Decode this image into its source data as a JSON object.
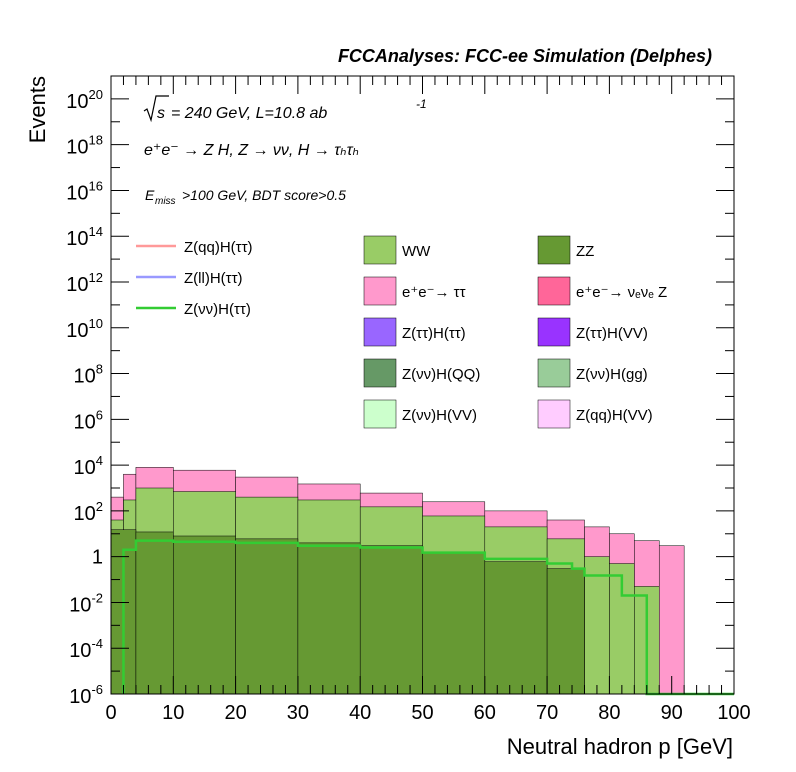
{
  "chart_data": {
    "type": "bar",
    "stacked": true,
    "log_y": true,
    "title": "FCCAnalyses: FCC-ee Simulation (Delphes)",
    "xlabel": "Neutral hadron p [GeV]",
    "ylabel": "Events",
    "xlim": [
      0,
      100
    ],
    "ylim": [
      1e-06,
      1e+21
    ],
    "grid": false,
    "legend_placement": "center",
    "x_ticks": [
      "0",
      "10",
      "20",
      "30",
      "40",
      "50",
      "60",
      "70",
      "80",
      "90",
      "100"
    ],
    "y_ticks": [
      {
        "exp": "-6",
        "value": 1e-06
      },
      {
        "exp": "-4",
        "value": 0.0001
      },
      {
        "exp": "-2",
        "value": 0.01
      },
      {
        "exp": "",
        "value": 1,
        "label": "1"
      },
      {
        "exp": "2",
        "value": 100.0
      },
      {
        "exp": "4",
        "value": 10000.0
      },
      {
        "exp": "6",
        "value": 1000000.0
      },
      {
        "exp": "8",
        "value": 100000000.0
      },
      {
        "exp": "10",
        "value": 10000000000.0
      },
      {
        "exp": "12",
        "value": 1000000000000.0
      },
      {
        "exp": "14",
        "value": 100000000000000.0
      },
      {
        "exp": "16",
        "value": 1e+16
      },
      {
        "exp": "18",
        "value": 1e+18
      },
      {
        "exp": "20",
        "value": 1e+20
      }
    ],
    "annotations": {
      "line1": "= 240 GeV, L=10.8 ab",
      "line1_sqrt": "s",
      "line1_sup": "-1",
      "line2": "e⁺e⁻ → Z H, Z → νν, H → τₕτₕ",
      "line3_main": ">100 GeV, BDT score>0.5",
      "line3_E": "E",
      "line3_sub": "miss"
    },
    "stack_envelopes": [
      {
        "name": "WW",
        "color": "#99cc66",
        "edges": [
          0,
          2,
          4,
          10,
          20,
          30,
          40,
          50,
          60,
          70,
          76,
          80,
          84,
          88,
          92
        ],
        "values": [
          40.0,
          300.0,
          1000.0,
          700.0,
          400.0,
          300.0,
          150.0,
          60.0,
          20.0,
          6,
          1,
          0.5,
          0.05,
          1e-06
        ]
      },
      {
        "name": "e⁺e⁻→ ττ",
        "color": "#ff99cc",
        "edges": [
          0,
          2,
          4,
          10,
          20,
          30,
          40,
          50,
          60,
          70,
          76,
          80,
          84,
          88,
          92
        ],
        "values": [
          400.0,
          4000.0,
          8000.0,
          6000.0,
          3000.0,
          1500.0,
          600.0,
          250.0,
          100.0,
          40.0,
          20.0,
          10.0,
          5,
          3
        ]
      },
      {
        "name": "e⁺e⁻→ νₑνₑ Z",
        "color": "#ff6699",
        "edges": [
          0,
          4,
          10,
          20,
          30,
          40,
          50,
          60,
          70,
          76
        ],
        "values": [
          8,
          3,
          2,
          1,
          0.5,
          0.4,
          0.3,
          0.3,
          0.2
        ]
      },
      {
        "name": "ZZ",
        "color": "#669933",
        "edges": [
          0,
          4,
          10,
          20,
          30,
          40,
          50,
          60,
          70,
          76
        ],
        "values": [
          15,
          12,
          8,
          6,
          4,
          3,
          1.5,
          0.6,
          0.3
        ]
      }
    ],
    "series": [
      {
        "name": "Z(νν)H(ττ)",
        "color": "#33cc33",
        "edges": [
          2,
          4,
          10,
          20,
          30,
          40,
          50,
          60,
          70,
          74,
          76,
          82,
          84,
          86,
          100
        ],
        "values": [
          2,
          5,
          4.5,
          4,
          3,
          2.5,
          1.5,
          0.8,
          0.5,
          0.3,
          0.15,
          0.02,
          0.02,
          1e-06
        ]
      },
      {
        "name": "Z(qq)H(ττ)",
        "color": "#ff9999"
      },
      {
        "name": "Z(ll)H(ττ)",
        "color": "#9999ff"
      }
    ],
    "legend": [
      {
        "name": "Z(qq)H(ττ)",
        "color": "#ff9999",
        "style": "line"
      },
      {
        "name": "Z(ll)H(ττ)",
        "color": "#9999ff",
        "style": "line"
      },
      {
        "name": "Z(νν)H(ττ)",
        "color": "#33cc33",
        "style": "line"
      },
      {
        "name": "WW",
        "color": "#99cc66",
        "style": "box"
      },
      {
        "name": "ZZ",
        "color": "#669933",
        "style": "box"
      },
      {
        "name": "e⁺e⁻→ ττ",
        "color": "#ff99cc",
        "style": "box"
      },
      {
        "name": "e⁺e⁻→ νₑνₑ Z",
        "color": "#ff6699",
        "style": "box"
      },
      {
        "name": "Z(ττ)H(ττ)",
        "color": "#9966ff",
        "style": "box"
      },
      {
        "name": "Z(ττ)H(VV)",
        "color": "#9933ff",
        "style": "box"
      },
      {
        "name": "Z(νν)H(QQ)",
        "color": "#669966",
        "style": "box"
      },
      {
        "name": "Z(νν)H(gg)",
        "color": "#99cc99",
        "style": "box"
      },
      {
        "name": "Z(νν)H(VV)",
        "color": "#ccffcc",
        "style": "box"
      },
      {
        "name": "Z(qq)H(VV)",
        "color": "#ffccff",
        "style": "box"
      }
    ]
  }
}
